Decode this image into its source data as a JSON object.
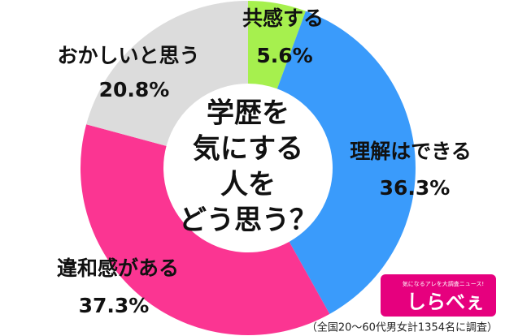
{
  "chart_data": {
    "type": "donut",
    "categories": [
      "共感する",
      "理解はできる",
      "違和感がある",
      "おかしいと思う"
    ],
    "values": [
      5.6,
      36.3,
      37.3,
      20.8
    ],
    "value_labels": [
      "5.6%",
      "36.3%",
      "37.3%",
      "20.8%"
    ],
    "colors": [
      "#a6f04e",
      "#3a9bfb",
      "#fb3592",
      "#dcdcdc"
    ],
    "center_text": [
      "学歴を",
      "気にする",
      "人を",
      "どう思う？"
    ],
    "note": "（全国20～60代男女計1354名に調査）",
    "logo": {
      "tagline": "気になるアレを大調査ニュース!",
      "name": "しらべぇ"
    }
  }
}
